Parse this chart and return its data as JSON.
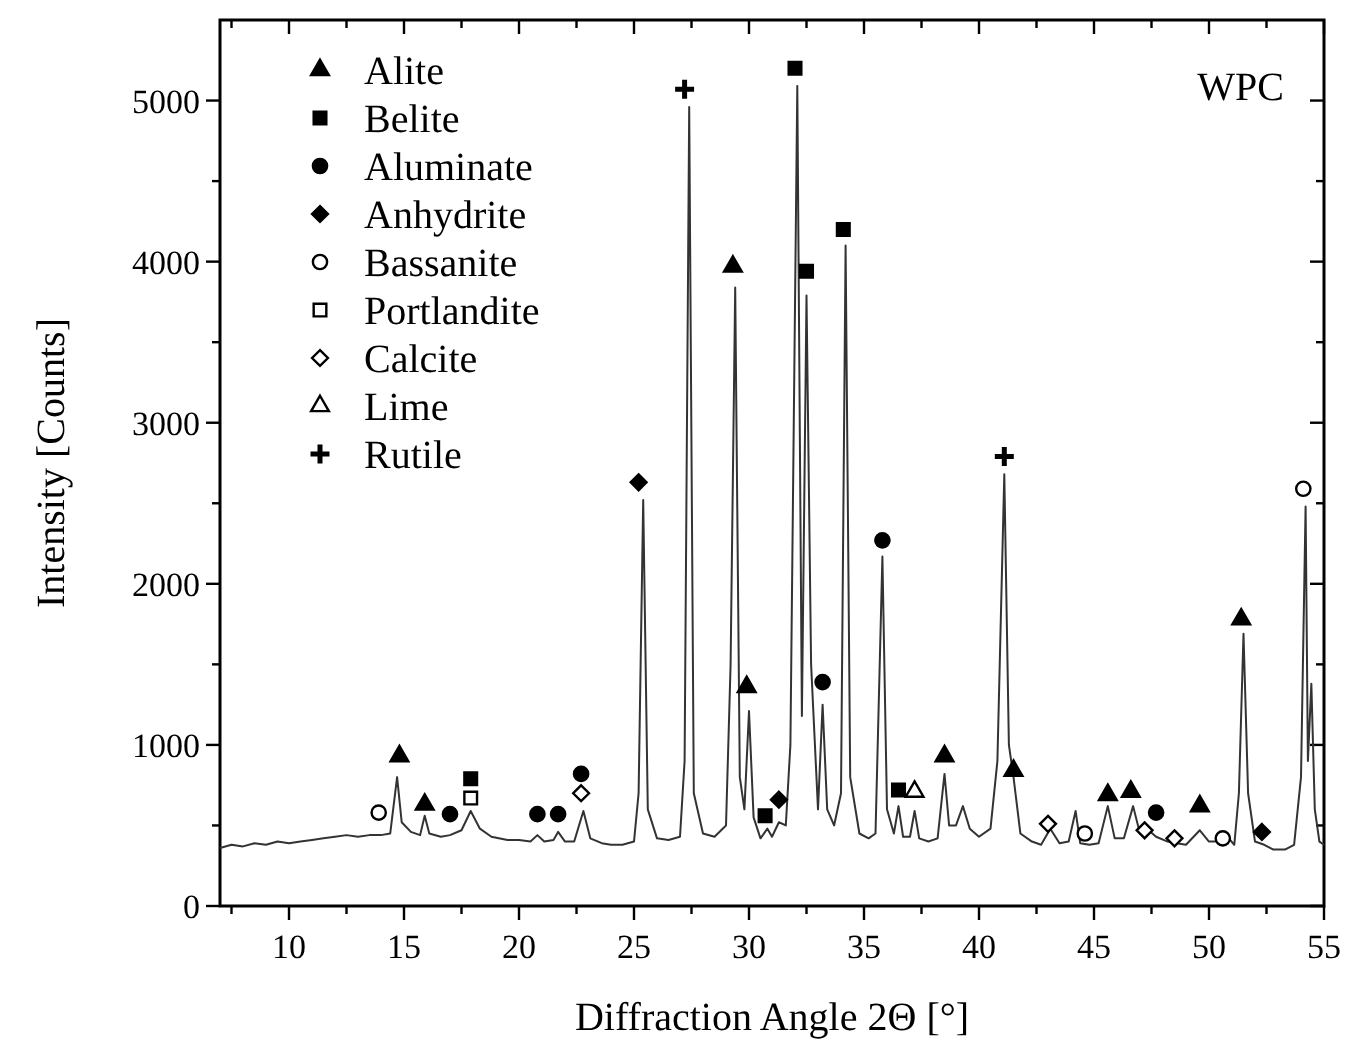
{
  "chart_data": {
    "type": "line",
    "xlabel": "Diffraction Angle 2Θ [°]",
    "ylabel": "Intensity [Counts]",
    "annotations": [
      "WPC"
    ],
    "xlim": [
      7,
      55
    ],
    "ylim": [
      0,
      5500
    ],
    "xticks": [
      {
        "value": 7.5,
        "label": null
      },
      10,
      {
        "value": 12.5,
        "label": null
      },
      15,
      {
        "value": 17.5,
        "label": null
      },
      20,
      {
        "value": 22.5,
        "label": null
      },
      25,
      {
        "value": 27.5,
        "label": null
      },
      30,
      {
        "value": 32.5,
        "label": null
      },
      35,
      {
        "value": 37.5,
        "label": null
      },
      40,
      {
        "value": 42.5,
        "label": null
      },
      45,
      {
        "value": 47.5,
        "label": null
      },
      50,
      {
        "value": 52.5,
        "label": null
      },
      55
    ],
    "yticks": [
      0,
      {
        "value": 500,
        "label": null
      },
      1000,
      {
        "value": 1500,
        "label": null
      },
      2000,
      {
        "value": 2500,
        "label": null
      },
      3000,
      {
        "value": 3500,
        "label": null
      },
      4000,
      {
        "value": 4500,
        "label": null
      },
      5000
    ],
    "legend": "top left",
    "grid": false,
    "series": [
      {
        "color": "#333333",
        "marker": "none",
        "line_style": "solid",
        "x": [
          7,
          7.5,
          8,
          8.5,
          9,
          9.5,
          10,
          10.5,
          11,
          11.5,
          12,
          12.5,
          13,
          13.5,
          14,
          14.4,
          14.7,
          14.9,
          15.3,
          15.7,
          15.9,
          16.1,
          16.6,
          17.0,
          17.5,
          17.9,
          18.3,
          18.8,
          19.5,
          20,
          20.5,
          20.8,
          21.1,
          21.5,
          21.7,
          22,
          22.4,
          22.8,
          23.1,
          23.6,
          24,
          24.5,
          25,
          25.2,
          25.4,
          25.6,
          26,
          26.5,
          27,
          27.2,
          27.4,
          27.6,
          28,
          28.5,
          29,
          29.2,
          29.4,
          29.6,
          29.8,
          30.0,
          30.2,
          30.5,
          30.8,
          31.0,
          31.3,
          31.6,
          31.8,
          32.1,
          32.3,
          32.5,
          32.7,
          33.0,
          33.2,
          33.4,
          33.7,
          34.0,
          34.2,
          34.4,
          34.8,
          35.2,
          35.5,
          35.8,
          36.0,
          36.3,
          36.5,
          36.7,
          37.0,
          37.2,
          37.4,
          37.8,
          38.2,
          38.5,
          38.7,
          39.0,
          39.3,
          39.6,
          40,
          40.5,
          40.8,
          41.1,
          41.3,
          41.5,
          41.8,
          42.3,
          42.7,
          43.1,
          43.5,
          43.9,
          44.2,
          44.4,
          44.8,
          45.2,
          45.6,
          45.9,
          46.3,
          46.7,
          47.0,
          47.3,
          47.7,
          48.2,
          48.6,
          49.0,
          49.6,
          50.0,
          50.5,
          50.8,
          51.1,
          51.3,
          51.5,
          51.7,
          52,
          52.4,
          52.8,
          53.3,
          53.7,
          54.0,
          54.2,
          54.3,
          54.45,
          54.6,
          54.8,
          55
        ],
        "values": [
          360,
          380,
          370,
          390,
          380,
          400,
          390,
          400,
          410,
          420,
          430,
          440,
          430,
          440,
          440,
          450,
          800,
          520,
          460,
          440,
          560,
          450,
          430,
          440,
          470,
          590,
          480,
          430,
          410,
          410,
          400,
          440,
          400,
          410,
          460,
          400,
          400,
          590,
          420,
          390,
          380,
          380,
          400,
          700,
          2520,
          600,
          420,
          410,
          430,
          900,
          4960,
          700,
          450,
          430,
          500,
          1500,
          3840,
          800,
          600,
          1210,
          550,
          420,
          480,
          430,
          520,
          500,
          1000,
          5090,
          1180,
          3790,
          1500,
          600,
          1250,
          600,
          500,
          700,
          4100,
          800,
          450,
          420,
          450,
          2170,
          600,
          450,
          620,
          430,
          430,
          590,
          420,
          400,
          420,
          820,
          500,
          500,
          620,
          480,
          430,
          480,
          900,
          2680,
          1000,
          800,
          450,
          400,
          380,
          480,
          390,
          400,
          590,
          390,
          380,
          390,
          620,
          420,
          420,
          620,
          450,
          480,
          430,
          400,
          390,
          380,
          470,
          400,
          400,
          430,
          380,
          700,
          1690,
          700,
          400,
          380,
          350,
          350,
          380,
          800,
          2480,
          900,
          1380,
          600,
          400,
          380
        ]
      },
      {
        "type": "scatter",
        "name": "Alite",
        "color": "#000000",
        "marker": "triangle",
        "x": [
          14.8,
          15.9,
          29.3,
          29.9,
          38.5,
          41.5,
          45.6,
          46.6,
          49.6,
          51.4
        ],
        "values": [
          930,
          630,
          3970,
          1360,
          930,
          840,
          690,
          710,
          620,
          1780
        ]
      },
      {
        "type": "scatter",
        "name": "Belite",
        "color": "#000000",
        "marker": "square",
        "x": [
          17.9,
          30.7,
          32.0,
          32.5,
          34.1,
          36.5
        ],
        "values": [
          790,
          560,
          5200,
          3940,
          4200,
          720
        ]
      },
      {
        "type": "scatter",
        "name": "Aluminate",
        "color": "#000000",
        "marker": "circle",
        "x": [
          17.0,
          20.8,
          21.7,
          22.7,
          33.2,
          35.8,
          47.7
        ],
        "values": [
          570,
          570,
          570,
          820,
          1390,
          2270,
          580
        ]
      },
      {
        "type": "scatter",
        "name": "Anhydrite",
        "color": "#000000",
        "marker": "diamond",
        "x": [
          25.2,
          31.3,
          52.3
        ],
        "values": [
          2630,
          660,
          460
        ]
      },
      {
        "type": "scatter",
        "name": "Bassanite",
        "color": "#ffffff",
        "marker": "circle",
        "x": [
          13.9,
          44.6,
          50.6,
          54.1
        ],
        "values": [
          580,
          450,
          420,
          2590
        ]
      },
      {
        "type": "scatter",
        "name": "Portlandite",
        "color": "#ffffff",
        "marker": "square",
        "x": [
          17.9
        ],
        "values": [
          670
        ]
      },
      {
        "type": "scatter",
        "name": "Calcite",
        "color": "#ffffff",
        "marker": "diamond",
        "x": [
          22.7,
          43.0,
          47.2,
          48.5
        ],
        "values": [
          700,
          510,
          470,
          420
        ]
      },
      {
        "type": "scatter",
        "name": "Lime",
        "color": "#ffffff",
        "marker": "triangle",
        "x": [
          37.2
        ],
        "values": [
          710
        ]
      },
      {
        "type": "scatter",
        "name": "Rutile",
        "color": "#000000",
        "marker": "cross",
        "x": [
          27.2,
          41.1
        ],
        "values": [
          5070,
          2790
        ]
      }
    ]
  }
}
